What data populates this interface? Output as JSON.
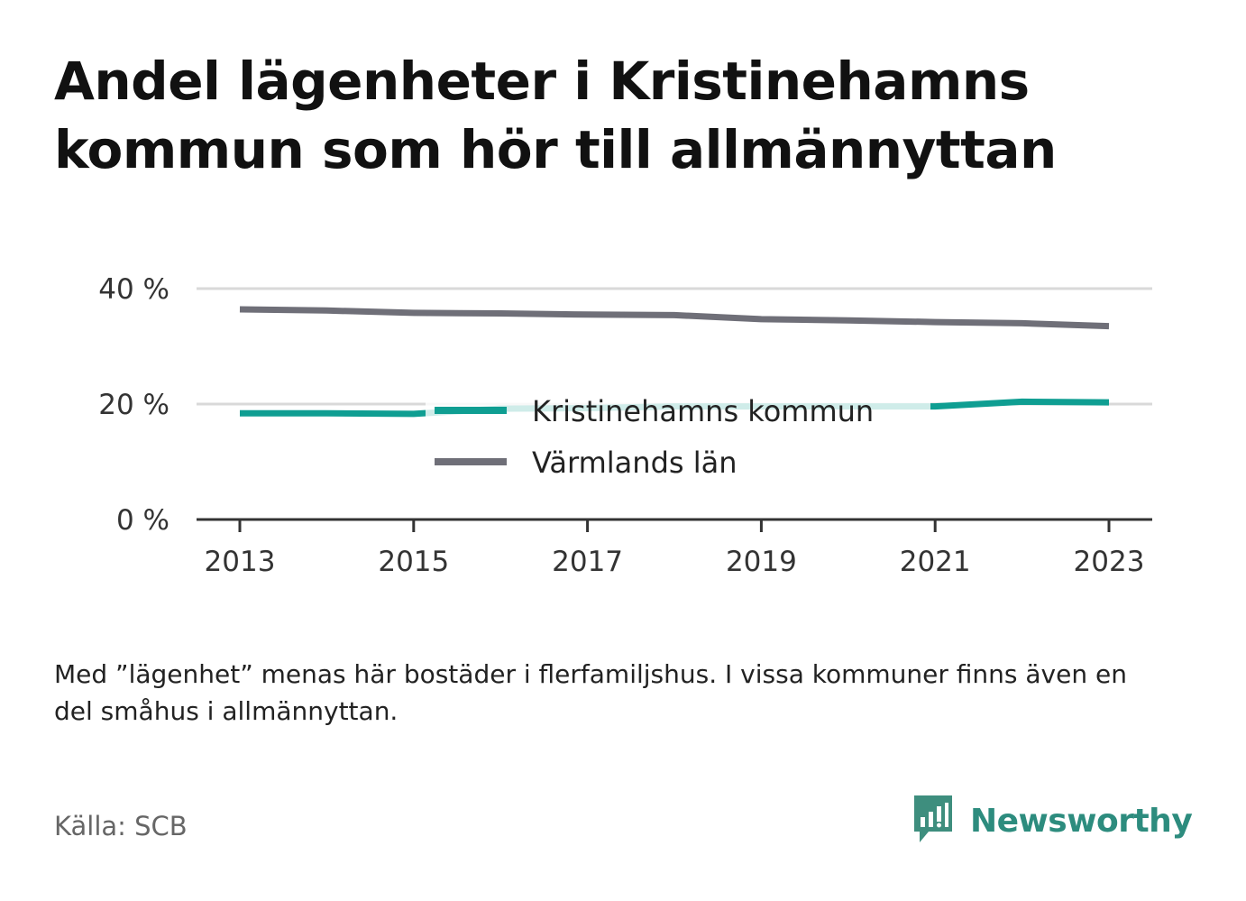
{
  "title": "Andel lägenheter i Kristinehamns kommun som hör till allmännyttan",
  "note": "Med ”lägenhet” menas här bostäder i flerfamiljshus. I vissa kommuner finns även en del småhus i allmännyttan.",
  "source": "Källa: SCB",
  "brand": {
    "name": "Newsworthy",
    "color": "#2d8c7e",
    "icon": "newsworthy-logo-icon"
  },
  "chart_data": {
    "type": "line",
    "x": [
      2013,
      2014,
      2015,
      2016,
      2017,
      2018,
      2019,
      2020,
      2021,
      2022,
      2023
    ],
    "x_ticks": [
      "2013",
      "2015",
      "2017",
      "2019",
      "2021",
      "2023"
    ],
    "y_ticks": [
      "0 %",
      "20 %",
      "40 %"
    ],
    "ylim": [
      0,
      40
    ],
    "y_gridlines": [
      20,
      40
    ],
    "grid": true,
    "legend_placement": "center",
    "series": [
      {
        "name": "Kristinehamns kommun",
        "color": "#0f9e92",
        "values": [
          18.4,
          18.4,
          18.3,
          19.2,
          19.3,
          19.6,
          19.6,
          19.6,
          19.6,
          20.4,
          20.3
        ]
      },
      {
        "name": "Värmlands län",
        "color": "#6f6f78",
        "values": [
          36.4,
          36.2,
          35.8,
          35.7,
          35.5,
          35.4,
          34.7,
          34.5,
          34.2,
          34.0,
          33.5
        ]
      }
    ]
  }
}
